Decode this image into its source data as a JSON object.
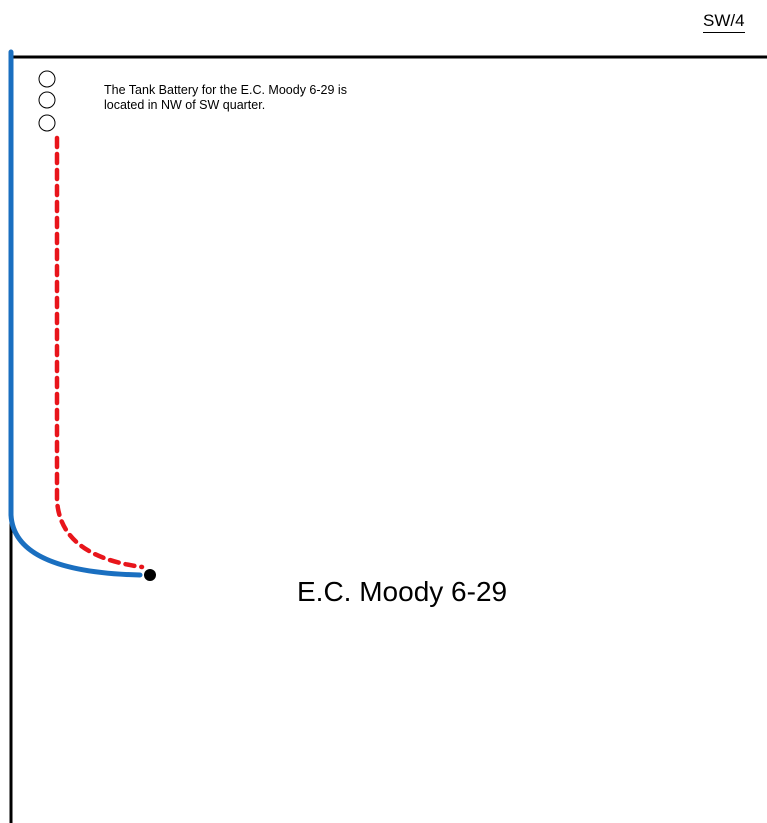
{
  "map": {
    "quarter_label": "SW/4",
    "note": "The Tank Battery for the E.C. Moody 6-29 is located in NW of SW quarter.",
    "well_name": "E.C. Moody 6-29"
  },
  "colors": {
    "road": "#1a6fc0",
    "flowline": "#e8151b",
    "boundary": "#000000"
  }
}
